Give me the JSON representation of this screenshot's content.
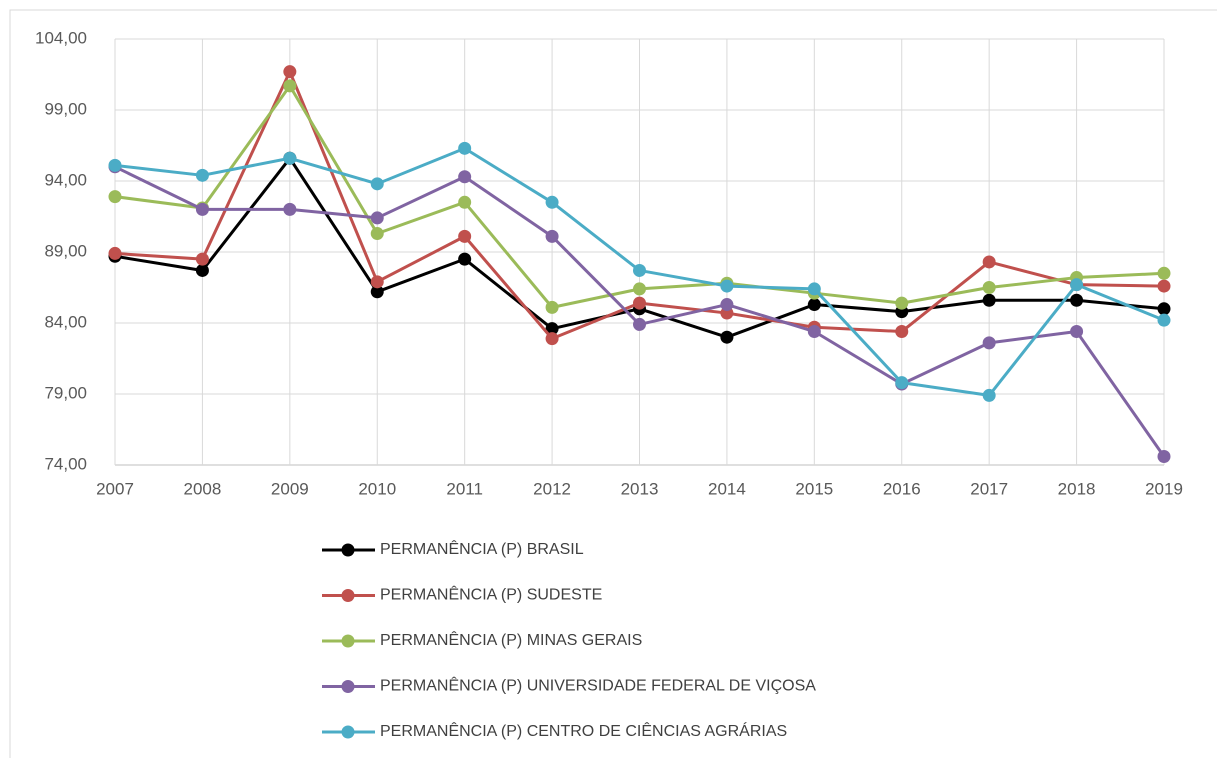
{
  "chart_data": {
    "type": "line",
    "categories": [
      "2007",
      "2008",
      "2009",
      "2010",
      "2011",
      "2012",
      "2013",
      "2014",
      "2015",
      "2016",
      "2017",
      "2018",
      "2019"
    ],
    "series": [
      {
        "name": "PERMANÊNCIA (P) BRASIL",
        "color": "#000000",
        "values": [
          88.7,
          87.7,
          95.6,
          86.2,
          88.5,
          83.6,
          85.0,
          83.0,
          85.3,
          84.8,
          85.6,
          85.6,
          85.0
        ]
      },
      {
        "name": "PERMANÊNCIA (P) SUDESTE",
        "color": "#c0504d",
        "values": [
          88.9,
          88.5,
          101.7,
          86.9,
          90.1,
          82.9,
          85.4,
          84.7,
          83.7,
          83.4,
          88.3,
          86.7,
          86.6
        ]
      },
      {
        "name": "PERMANÊNCIA (P) MINAS GERAIS",
        "color": "#9bbb59",
        "values": [
          92.9,
          92.1,
          100.7,
          90.3,
          92.5,
          85.1,
          86.4,
          86.8,
          86.1,
          85.4,
          86.5,
          87.2,
          87.5
        ]
      },
      {
        "name": "PERMANÊNCIA (P) UNIVERSIDADE FEDERAL DE VIÇOSA",
        "color": "#8064a2",
        "values": [
          95.0,
          92.0,
          92.0,
          91.4,
          94.3,
          90.1,
          83.9,
          85.3,
          83.4,
          79.7,
          82.6,
          83.4,
          74.6
        ]
      },
      {
        "name": "PERMANÊNCIA (P) CENTRO DE CIÊNCIAS AGRÁRIAS",
        "color": "#4bacc6",
        "values": [
          95.1,
          94.4,
          95.6,
          93.8,
          96.3,
          92.5,
          87.7,
          86.6,
          86.4,
          79.8,
          78.9,
          86.7,
          84.2
        ]
      }
    ],
    "ylim": [
      74,
      104
    ],
    "yticks": [
      {
        "value": 74,
        "label": "74,00"
      },
      {
        "value": 79,
        "label": "79,00"
      },
      {
        "value": 84,
        "label": "84,00"
      },
      {
        "value": 89,
        "label": "89,00"
      },
      {
        "value": 94,
        "label": "94,00"
      },
      {
        "value": 99,
        "label": "99,00"
      },
      {
        "value": 104,
        "label": "104,00"
      }
    ],
    "grid": true
  }
}
